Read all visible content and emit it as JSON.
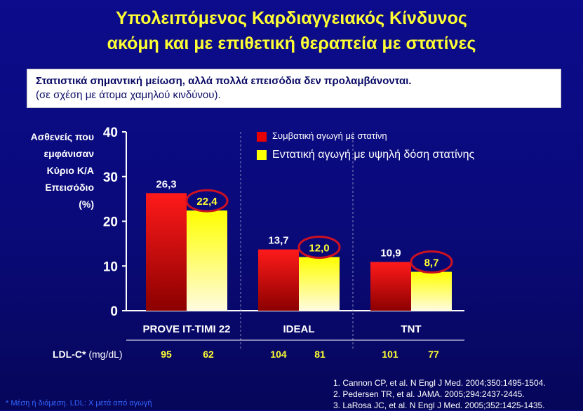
{
  "header": {
    "title_line1": "Υπολειπόμενος Καρδιαγγειακός Κίνδυνος",
    "title_line2": "ακόμη και με επιθετική θεραπεία με στατίνες"
  },
  "subtitle": {
    "line1": "Στατιστικά σημαντική μείωση, αλλά πολλά επεισόδια δεν προλαμβάνονται.",
    "line2": "(σε σχέση με άτομα χαμηλού κινδύνου)."
  },
  "colors": {
    "standard": "#e80000",
    "intensive": "#ffff00",
    "highlight_ring": "#cc1122",
    "background": "#0a0a7a"
  },
  "chart_data": {
    "type": "bar",
    "title": "",
    "ylabel_lines": [
      "Ασθενείς που",
      "εμφάνισαν",
      "Κύριο Κ/Α",
      "Επεισόδιο",
      "(%)"
    ],
    "ylim": [
      0,
      40
    ],
    "yticks": [
      "0",
      "10",
      "20",
      "30",
      "40"
    ],
    "legend_position": "top-right",
    "categories": [
      "PROVE IT-TIMI 22",
      "IDEAL",
      "TNT"
    ],
    "series": [
      {
        "name": "Συμβατική αγωγή με στατίνη",
        "values": [
          26.3,
          13.7,
          10.9
        ],
        "labels": [
          "26,3",
          "13,7",
          "10,9"
        ]
      },
      {
        "name": "Εντατική αγωγή με υψηλή δόση στατίνης",
        "values": [
          22.4,
          12.0,
          8.7
        ],
        "labels": [
          "22,4",
          "12,0",
          "8,7"
        ]
      }
    ]
  },
  "ldl": {
    "label": "LDL-C*",
    "unit": "(mg/dL)",
    "values": [
      "95",
      "62",
      "104",
      "81",
      "101",
      "77"
    ]
  },
  "references": [
    "1. Cannon CP, et al. N Engl J Med. 2004;350:1495-1504.",
    "2. Pedersen TR, et al. JAMA. 2005;294:2437-2445.",
    "3. LaRosa JC, et al. N Engl J Med. 2005;352:1425-1435."
  ],
  "footnote": "* Μέση ή διάμεση. LDL: Χ μετά από αγωγή"
}
